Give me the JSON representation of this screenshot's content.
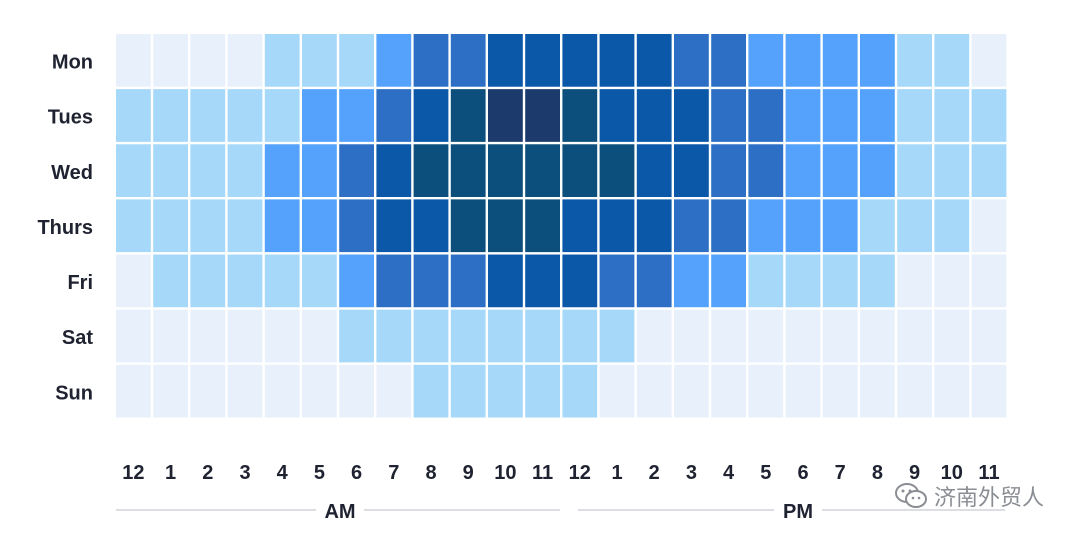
{
  "chart_data": {
    "type": "heatmap",
    "rows": [
      "Mon",
      "Tues",
      "Wed",
      "Thurs",
      "Fri",
      "Sat",
      "Sun"
    ],
    "columns": [
      "12",
      "1",
      "2",
      "3",
      "4",
      "5",
      "6",
      "7",
      "8",
      "9",
      "10",
      "11",
      "12",
      "1",
      "2",
      "3",
      "4",
      "5",
      "6",
      "7",
      "8",
      "9",
      "10",
      "11"
    ],
    "period_labels": [
      "AM",
      "PM"
    ],
    "level_colors": [
      "#e8f1fb",
      "#a6d8fa",
      "#54a2fb",
      "#2c6fc4",
      "#0b58a8",
      "#0d4f7c",
      "#1c3b6c"
    ],
    "values": [
      [
        0,
        0,
        0,
        0,
        1,
        1,
        1,
        2,
        3,
        3,
        4,
        4,
        4,
        4,
        4,
        3,
        3,
        2,
        2,
        2,
        2,
        1,
        1,
        0
      ],
      [
        1,
        1,
        1,
        1,
        1,
        2,
        2,
        3,
        4,
        5,
        6,
        6,
        5,
        4,
        4,
        4,
        3,
        3,
        2,
        2,
        2,
        1,
        1,
        1
      ],
      [
        1,
        1,
        1,
        1,
        2,
        2,
        3,
        4,
        5,
        5,
        5,
        5,
        5,
        5,
        4,
        4,
        3,
        3,
        2,
        2,
        2,
        1,
        1,
        1
      ],
      [
        1,
        1,
        1,
        1,
        2,
        2,
        3,
        4,
        4,
        5,
        5,
        5,
        4,
        4,
        4,
        3,
        3,
        2,
        2,
        2,
        1,
        1,
        1,
        0
      ],
      [
        0,
        1,
        1,
        1,
        1,
        1,
        2,
        3,
        3,
        3,
        4,
        4,
        4,
        3,
        3,
        2,
        2,
        1,
        1,
        1,
        1,
        0,
        0,
        0
      ],
      [
        0,
        0,
        0,
        0,
        0,
        0,
        1,
        1,
        1,
        1,
        1,
        1,
        1,
        1,
        0,
        0,
        0,
        0,
        0,
        0,
        0,
        0,
        0,
        0
      ],
      [
        0,
        0,
        0,
        0,
        0,
        0,
        0,
        0,
        1,
        1,
        1,
        1,
        1,
        0,
        0,
        0,
        0,
        0,
        0,
        0,
        0,
        0,
        0,
        0
      ]
    ]
  },
  "watermark": {
    "text": "济南外贸人",
    "icon": "wechat-icon"
  }
}
